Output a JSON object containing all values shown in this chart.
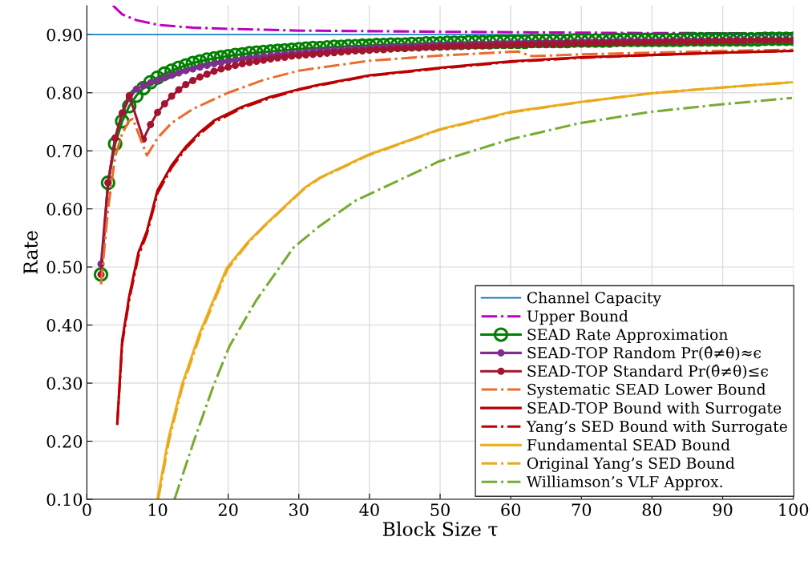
{
  "chart_data": {
    "type": "line",
    "xlabel": "Block Size τ",
    "ylabel": "Rate",
    "xlim": [
      0,
      100
    ],
    "ylim": [
      0.1,
      0.95
    ],
    "xticks": [
      0,
      10,
      20,
      30,
      40,
      50,
      60,
      70,
      80,
      90,
      100
    ],
    "yticks": [
      {
        "value": 0.1,
        "label": "0.10"
      },
      {
        "value": 0.2,
        "label": "0.20"
      },
      {
        "value": 0.3,
        "label": "0.30"
      },
      {
        "value": 0.4,
        "label": "0.40"
      },
      {
        "value": 0.5,
        "label": "0.50"
      },
      {
        "value": 0.6,
        "label": "0.60"
      },
      {
        "value": 0.7,
        "label": "0.70"
      },
      {
        "value": 0.8,
        "label": "0.80"
      },
      {
        "value": 0.9,
        "label": "0.90"
      }
    ],
    "grid": true,
    "legend": "bottom right",
    "series": [
      {
        "name": "Channel Capacity",
        "color": "#0072bd",
        "line_style": "solid",
        "marker": "none",
        "x": [
          0,
          100
        ],
        "values": [
          0.9,
          0.9
        ]
      },
      {
        "name": "Upper Bound",
        "color": "#c000c0",
        "line_style": "dashdot",
        "marker": "none",
        "x": [
          3.7,
          5,
          7,
          10,
          15,
          20,
          30,
          50,
          75,
          100
        ],
        "values": [
          0.95,
          0.935,
          0.925,
          0.917,
          0.912,
          0.91,
          0.907,
          0.905,
          0.903,
          0.902
        ]
      },
      {
        "name": "SEAD Rate Approximation",
        "color": "#008000",
        "line_style": "solid",
        "marker": "circle",
        "x": [
          2,
          3,
          4,
          5,
          6,
          7,
          8,
          9,
          10,
          11,
          12,
          13,
          14,
          15,
          16,
          17,
          18,
          19,
          20,
          21,
          22,
          23,
          24,
          25,
          26,
          27,
          28,
          29,
          30,
          31,
          32,
          33,
          34,
          35,
          36,
          37,
          38,
          39,
          40,
          41,
          42,
          43,
          44,
          45,
          46,
          47,
          48,
          49,
          50,
          51,
          52,
          53,
          54,
          55,
          56,
          57,
          58,
          59,
          60,
          61,
          62,
          63,
          64,
          65,
          66,
          67,
          68,
          69,
          70,
          71,
          72,
          73,
          74,
          75,
          76,
          77,
          78,
          79,
          80,
          81,
          82,
          83,
          84,
          85,
          86,
          87,
          88,
          89,
          90,
          91,
          92,
          93,
          94,
          95,
          96,
          97,
          98,
          99,
          100
        ],
        "values": [
          0.487,
          0.645,
          0.712,
          0.751,
          0.777,
          0.795,
          0.808,
          0.818,
          0.826,
          0.833,
          0.838,
          0.843,
          0.847,
          0.851,
          0.854,
          0.857,
          0.859,
          0.861,
          0.863,
          0.865,
          0.866,
          0.868,
          0.869,
          0.87,
          0.871,
          0.872,
          0.873,
          0.874,
          0.875,
          0.876,
          0.877,
          0.877,
          0.878,
          0.879,
          0.879,
          0.88,
          0.88,
          0.881,
          0.881,
          0.882,
          0.882,
          0.883,
          0.883,
          0.883,
          0.884,
          0.884,
          0.885,
          0.885,
          0.885,
          0.886,
          0.886,
          0.886,
          0.887,
          0.887,
          0.887,
          0.887,
          0.888,
          0.888,
          0.888,
          0.888,
          0.888,
          0.889,
          0.889,
          0.889,
          0.889,
          0.889,
          0.889,
          0.89,
          0.89,
          0.89,
          0.89,
          0.89,
          0.89,
          0.891,
          0.891,
          0.891,
          0.891,
          0.891,
          0.891,
          0.891,
          0.891,
          0.891,
          0.891,
          0.892,
          0.892,
          0.892,
          0.892,
          0.892,
          0.892,
          0.892,
          0.892,
          0.892,
          0.892,
          0.892,
          0.893,
          0.893,
          0.893,
          0.893,
          0.893
        ]
      },
      {
        "name": "SEAD-TOP Random Pr(θ̂≠θ)≈ϵ",
        "color": "#7e2f8e",
        "line_style": "solid",
        "marker": "circle",
        "x": [
          2,
          3,
          4,
          5,
          6,
          7,
          8,
          9,
          10,
          11,
          12,
          13,
          14,
          15,
          16,
          17,
          18,
          19,
          20,
          21,
          22,
          23,
          24,
          25,
          26,
          27,
          28,
          29,
          30,
          31,
          32,
          33,
          34,
          35,
          36,
          37,
          38,
          39,
          40,
          41,
          42,
          43,
          44,
          45,
          46,
          47,
          48,
          49,
          50,
          51,
          52,
          53,
          54,
          55,
          56,
          57,
          58,
          59,
          60,
          61,
          62,
          63,
          64,
          65,
          66,
          67,
          68,
          69,
          70,
          71,
          72,
          73,
          74,
          75,
          76,
          77,
          78,
          79,
          80,
          81,
          82,
          83,
          84,
          85,
          86,
          87,
          88,
          89,
          90,
          91,
          92,
          93,
          94,
          95,
          96,
          97,
          98,
          99,
          100
        ],
        "values": [
          0.505,
          0.645,
          0.722,
          0.765,
          0.79,
          0.806,
          0.812,
          0.817,
          0.821,
          0.826,
          0.83,
          0.834,
          0.838,
          0.841,
          0.844,
          0.847,
          0.85,
          0.852,
          0.854,
          0.856,
          0.858,
          0.86,
          0.861,
          0.863,
          0.864,
          0.866,
          0.867,
          0.868,
          0.869,
          0.87,
          0.871,
          0.872,
          0.873,
          0.874,
          0.874,
          0.875,
          0.876,
          0.876,
          0.877,
          0.878,
          0.878,
          0.879,
          0.879,
          0.88,
          0.88,
          0.881,
          0.881,
          0.882,
          0.882,
          0.882,
          0.883,
          0.883,
          0.883,
          0.884,
          0.884,
          0.884,
          0.885,
          0.885,
          0.885,
          0.886,
          0.886,
          0.886,
          0.886,
          0.887,
          0.887,
          0.887,
          0.887,
          0.887,
          0.888,
          0.888,
          0.888,
          0.888,
          0.888,
          0.888,
          0.889,
          0.889,
          0.889,
          0.889,
          0.889,
          0.889,
          0.889,
          0.89,
          0.89,
          0.89,
          0.89,
          0.89,
          0.89,
          0.89,
          0.89,
          0.891,
          0.891,
          0.891,
          0.891,
          0.891,
          0.891,
          0.891,
          0.891,
          0.891,
          0.891
        ]
      },
      {
        "name": "SEAD-TOP Standard Pr(θ̂≠θ)≤ϵ",
        "color": "#a2142f",
        "line_style": "solid",
        "marker": "circle",
        "x": [
          2,
          3,
          4,
          5,
          6,
          8,
          9,
          10,
          11,
          12,
          13,
          14,
          15,
          16,
          17,
          18,
          19,
          20,
          21,
          22,
          23,
          24,
          25,
          26,
          27,
          28,
          29,
          30,
          31,
          32,
          33,
          34,
          35,
          36,
          37,
          38,
          39,
          40,
          41,
          42,
          43,
          44,
          45,
          46,
          47,
          48,
          49,
          50,
          51,
          52,
          53,
          54,
          55,
          56,
          57,
          58,
          59,
          60,
          61,
          62,
          63,
          64,
          65,
          66,
          67,
          68,
          69,
          70,
          71,
          72,
          73,
          74,
          75,
          76,
          77,
          78,
          79,
          80,
          81,
          82,
          83,
          84,
          85,
          86,
          87,
          88,
          89,
          90,
          91,
          92,
          93,
          94,
          95,
          96,
          97,
          98,
          99,
          100
        ],
        "values": [
          0.487,
          0.645,
          0.722,
          0.765,
          0.795,
          0.72,
          0.745,
          0.766,
          0.781,
          0.794,
          0.805,
          0.814,
          0.821,
          0.827,
          0.832,
          0.837,
          0.841,
          0.844,
          0.847,
          0.85,
          0.852,
          0.854,
          0.856,
          0.858,
          0.86,
          0.861,
          0.863,
          0.864,
          0.865,
          0.866,
          0.867,
          0.868,
          0.869,
          0.87,
          0.871,
          0.872,
          0.872,
          0.873,
          0.874,
          0.874,
          0.875,
          0.876,
          0.876,
          0.877,
          0.877,
          0.878,
          0.878,
          0.879,
          0.879,
          0.88,
          0.88,
          0.88,
          0.881,
          0.881,
          0.881,
          0.882,
          0.882,
          0.882,
          0.883,
          0.883,
          0.883,
          0.884,
          0.884,
          0.884,
          0.884,
          0.885,
          0.885,
          0.885,
          0.885,
          0.886,
          0.886,
          0.886,
          0.886,
          0.886,
          0.887,
          0.887,
          0.887,
          0.887,
          0.887,
          0.888,
          0.888,
          0.888,
          0.888,
          0.888,
          0.888,
          0.889,
          0.889,
          0.889,
          0.889,
          0.889,
          0.889,
          0.89,
          0.89,
          0.89,
          0.89,
          0.89,
          0.89,
          0.89
        ]
      },
      {
        "name": "Systematic SEAD Lower Bound",
        "color": "#ec6b2d",
        "line_style": "dashdot",
        "marker": "none",
        "x": [
          2,
          3,
          4,
          5,
          6,
          6.5,
          8.5,
          10,
          12,
          15,
          20,
          25,
          30,
          40,
          50,
          61,
          63,
          70,
          80,
          90,
          100
        ],
        "values": [
          0.47,
          0.6,
          0.69,
          0.73,
          0.752,
          0.755,
          0.692,
          0.722,
          0.748,
          0.772,
          0.8,
          0.822,
          0.838,
          0.855,
          0.864,
          0.871,
          0.863,
          0.866,
          0.869,
          0.872,
          0.874
        ]
      },
      {
        "name": "SEAD-TOP Bound with Surrogate",
        "color": "#b30000",
        "line_style": "solid",
        "marker": "none",
        "x": [
          4.3,
          5,
          6,
          7.3,
          8.5,
          10,
          12,
          14,
          16,
          18,
          22,
          26,
          30,
          33,
          40,
          50,
          60,
          70,
          80,
          90,
          100
        ],
        "values": [
          0.23,
          0.374,
          0.45,
          0.525,
          0.562,
          0.632,
          0.675,
          0.707,
          0.732,
          0.752,
          0.776,
          0.793,
          0.806,
          0.814,
          0.83,
          0.843,
          0.854,
          0.861,
          0.865,
          0.869,
          0.872
        ]
      },
      {
        "name": "Yang’s SED Bound with Surrogate",
        "color": "#c00000",
        "line_style": "dashdot",
        "marker": "none",
        "x": [
          4.3,
          5,
          6,
          7.3,
          8.5,
          10,
          12,
          14,
          16,
          18,
          22,
          26,
          30,
          33,
          40,
          50,
          60,
          70,
          80,
          90,
          100
        ],
        "values": [
          0.23,
          0.368,
          0.444,
          0.519,
          0.557,
          0.627,
          0.671,
          0.704,
          0.729,
          0.749,
          0.774,
          0.791,
          0.805,
          0.813,
          0.829,
          0.842,
          0.853,
          0.86,
          0.865,
          0.869,
          0.872
        ]
      },
      {
        "name": "Fundamental SEAD Bound",
        "color": "#edb120",
        "line_style": "solid",
        "marker": "none",
        "x": [
          10,
          11.5,
          13.4,
          16,
          19.8,
          22.8,
          25.1,
          30.8,
          33,
          39.8,
          49.9,
          60,
          69.9,
          79.8,
          89.8,
          99.8
        ],
        "values": [
          0.1,
          0.202,
          0.295,
          0.387,
          0.498,
          0.543,
          0.571,
          0.636,
          0.654,
          0.693,
          0.737,
          0.767,
          0.784,
          0.799,
          0.809,
          0.818
        ]
      },
      {
        "name": "Original Yang’s SED Bound",
        "color": "#e8a822",
        "line_style": "dashdot",
        "marker": "none",
        "x": [
          10.1,
          11.6,
          13.5,
          16.1,
          19.9,
          22.8,
          25.1,
          30.8,
          33,
          39.8,
          49.9,
          60,
          69.9,
          79.8,
          89.8,
          99.8
        ],
        "values": [
          0.1,
          0.2,
          0.293,
          0.385,
          0.496,
          0.541,
          0.57,
          0.635,
          0.653,
          0.692,
          0.736,
          0.766,
          0.784,
          0.799,
          0.809,
          0.818
        ]
      },
      {
        "name": "Williamson’s VLF Approx.",
        "color": "#77ac30",
        "line_style": "dashdot",
        "marker": "none",
        "x": [
          12.4,
          15.2,
          17.9,
          20.2,
          24,
          29.3,
          33,
          38,
          49.9,
          60,
          69.9,
          79.8,
          89.8,
          99.8
        ],
        "values": [
          0.1,
          0.202,
          0.295,
          0.364,
          0.443,
          0.534,
          0.571,
          0.614,
          0.682,
          0.72,
          0.748,
          0.767,
          0.78,
          0.791
        ]
      }
    ]
  }
}
